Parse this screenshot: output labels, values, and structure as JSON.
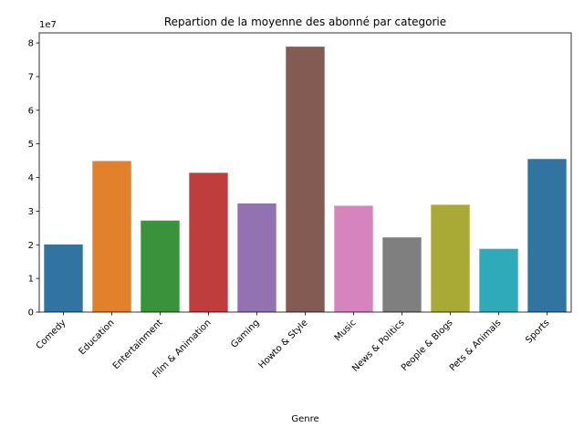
{
  "chart_data": {
    "type": "bar",
    "title": "Repartion de la moyenne des abonné par categorie",
    "xlabel": "Genre",
    "ylabel": "",
    "y_scale_label": "1e7",
    "ylim": [
      0,
      8.3
    ],
    "yticks": [
      "0",
      "1",
      "2",
      "3",
      "4",
      "5",
      "6",
      "7",
      "8"
    ],
    "categories": [
      "Comedy",
      "Education",
      "Entertainment",
      "Film & Animation",
      "Gaming",
      "Howto & Style",
      "Music",
      "News & Politics",
      "People & Blogs",
      "Pets & Animals",
      "Sports"
    ],
    "values": [
      2.01,
      4.49,
      2.72,
      4.14,
      3.23,
      7.89,
      3.16,
      2.22,
      3.19,
      1.88,
      4.55
    ],
    "colors": [
      "#3274a1",
      "#e1812c",
      "#3a923a",
      "#c03d3e",
      "#9372b2",
      "#845b53",
      "#d684bd",
      "#7f7f7f",
      "#a9aa35",
      "#2eaab8",
      "#3274a1"
    ],
    "grid": false,
    "legend": "none"
  }
}
